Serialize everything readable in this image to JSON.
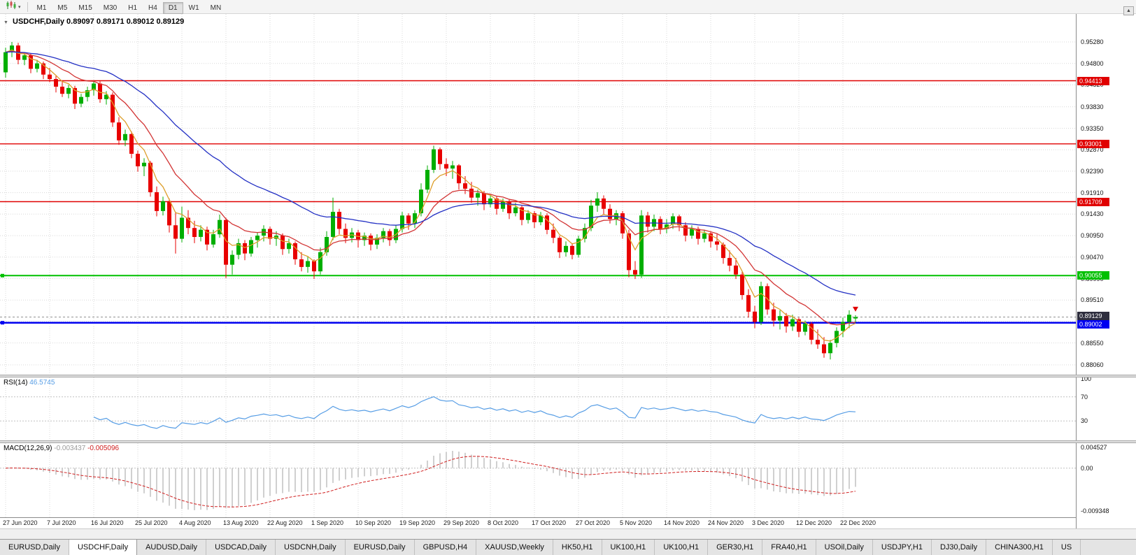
{
  "icons": {
    "collapse": "▼",
    "scroll_up": "▲",
    "chart_type": "candlestick-chart-icon",
    "dropdown": "▾"
  },
  "toolbar": {
    "timeframes": [
      "M1",
      "M5",
      "M15",
      "M30",
      "H1",
      "H4",
      "D1",
      "W1",
      "MN"
    ],
    "active_timeframe": "D1"
  },
  "chart": {
    "title": "USDCHF,Daily",
    "open": "0.89097",
    "high": "0.89171",
    "low": "0.89012",
    "close": "0.89129"
  },
  "indicators": {
    "rsi": {
      "label": "RSI(14)",
      "value": "46.5745",
      "color": "#569de5",
      "levels": [
        "100",
        "70",
        "30"
      ],
      "level_values": [
        100,
        70,
        30
      ]
    },
    "macd": {
      "label": "MACD(12,26,9)",
      "main_value": "-0.003437",
      "signal_value": "-0.005096",
      "hist_color": "#bcbcbc",
      "signal_color": "#d02020",
      "scale_labels": [
        "0.004527",
        "0.00",
        "-0.009348"
      ],
      "scale_max": 0.004527,
      "scale_min": -0.009348
    }
  },
  "chart_data": {
    "type": "candlestick",
    "symbol": "USDCHF",
    "timeframe": "Daily",
    "title": "USDCHF,Daily 0.89097 0.89171 0.89012 0.89129",
    "candle_format": "[open, high, low, close]",
    "up_color": "#00ae00",
    "down_color": "#e80000",
    "y_axis": {
      "price_max": 0.95905,
      "price_min": 0.87841,
      "ticks": [
        "0.95280",
        "0.94800",
        "0.94320",
        "0.93830",
        "0.93350",
        "0.92870",
        "0.92390",
        "0.91910",
        "0.91430",
        "0.90950",
        "0.90470",
        "0.89990",
        "0.89510",
        "0.89030",
        "0.88550",
        "0.88060"
      ]
    },
    "x_axis": {
      "label_every_n_candles": 7,
      "labels": [
        "27 Jun 2020",
        "7 Jul 2020",
        "16 Jul 2020",
        "25 Jul 2020",
        "4 Aug 2020",
        "13 Aug 2020",
        "22 Aug 2020",
        "1 Sep 2020",
        "10 Sep 2020",
        "19 Sep 2020",
        "29 Sep 2020",
        "8 Oct 2020",
        "17 Oct 2020",
        "27 Oct 2020",
        "5 Nov 2020",
        "14 Nov 2020",
        "24 Nov 2020",
        "3 Dec 2020",
        "12 Dec 2020",
        "22 Dec 2020"
      ]
    },
    "levels": [
      {
        "name": "resistance-1",
        "price": 0.94413,
        "label": "0.94413",
        "color": "#e00000",
        "width": 1.4,
        "handle": false,
        "tag_dy": -6
      },
      {
        "name": "resistance-2",
        "price": 0.93001,
        "label": "0.93001",
        "color": "#e00000",
        "width": 1.4,
        "handle": false,
        "tag_dy": -6
      },
      {
        "name": "resistance-3",
        "price": 0.91709,
        "label": "0.91709",
        "color": "#e00000",
        "width": 1.4,
        "handle": false,
        "tag_dy": -6
      },
      {
        "name": "support-green",
        "price": 0.90055,
        "label": "0.90055",
        "color": "#00c000",
        "width": 2,
        "handle": true,
        "tag_dy": -6
      },
      {
        "name": "support-blue",
        "price": 0.89002,
        "label": "0.89002",
        "color": "#0000f0",
        "width": 2.5,
        "handle": true,
        "tag_dy": -4
      }
    ],
    "current_price": {
      "value": 0.89129,
      "label": "0.89129",
      "tag_color": "#2e2e3e",
      "tag_dy": -8
    },
    "moving_averages": [
      {
        "name": "ma-fast-orange",
        "period": 5,
        "color": "#dd9f2c"
      },
      {
        "name": "ma-mid-red",
        "period": 13,
        "color": "#d23434"
      },
      {
        "name": "ma-slow-blue",
        "period": 34,
        "color": "#2330c4"
      }
    ],
    "arrow_marker": {
      "color": "#e00000",
      "candle_index": 135
    },
    "candles": [
      [
        0.946,
        0.9515,
        0.9448,
        0.9505
      ],
      [
        0.9505,
        0.9528,
        0.9494,
        0.952
      ],
      [
        0.952,
        0.9526,
        0.9478,
        0.9488
      ],
      [
        0.9488,
        0.9505,
        0.9476,
        0.9498
      ],
      [
        0.9498,
        0.9503,
        0.9458,
        0.9468
      ],
      [
        0.9468,
        0.9488,
        0.946,
        0.948
      ],
      [
        0.948,
        0.9484,
        0.9445,
        0.9455
      ],
      [
        0.9455,
        0.947,
        0.9438,
        0.9445
      ],
      [
        0.9445,
        0.9452,
        0.9415,
        0.9428
      ],
      [
        0.9428,
        0.9442,
        0.9405,
        0.9412
      ],
      [
        0.9412,
        0.9432,
        0.9402,
        0.9425
      ],
      [
        0.9425,
        0.943,
        0.9378,
        0.939
      ],
      [
        0.939,
        0.9412,
        0.9382,
        0.9405
      ],
      [
        0.9405,
        0.9428,
        0.9395,
        0.942
      ],
      [
        0.942,
        0.9441,
        0.9408,
        0.9435
      ],
      [
        0.9435,
        0.944,
        0.9392,
        0.94
      ],
      [
        0.94,
        0.9418,
        0.9388,
        0.941
      ],
      [
        0.941,
        0.9415,
        0.9338,
        0.9348
      ],
      [
        0.9348,
        0.936,
        0.9298,
        0.9308
      ],
      [
        0.9308,
        0.9332,
        0.9295,
        0.9322
      ],
      [
        0.9322,
        0.9328,
        0.9268,
        0.9278
      ],
      [
        0.9278,
        0.9285,
        0.9238,
        0.925
      ],
      [
        0.925,
        0.9268,
        0.9228,
        0.9258
      ],
      [
        0.9258,
        0.9262,
        0.9182,
        0.9192
      ],
      [
        0.9192,
        0.9205,
        0.9138,
        0.915
      ],
      [
        0.915,
        0.9182,
        0.914,
        0.9172
      ],
      [
        0.9172,
        0.9178,
        0.9102,
        0.9118
      ],
      [
        0.9118,
        0.9148,
        0.9055,
        0.9088
      ],
      [
        0.9088,
        0.916,
        0.908,
        0.9135
      ],
      [
        0.9135,
        0.9152,
        0.9098,
        0.9112
      ],
      [
        0.9112,
        0.9128,
        0.9078,
        0.9092
      ],
      [
        0.9092,
        0.9118,
        0.9082,
        0.9108
      ],
      [
        0.9108,
        0.9115,
        0.9062,
        0.9075
      ],
      [
        0.9075,
        0.9108,
        0.9068,
        0.9098
      ],
      [
        0.9098,
        0.9142,
        0.909,
        0.913
      ],
      [
        0.913,
        0.9135,
        0.9,
        0.903
      ],
      [
        0.903,
        0.9062,
        0.9008,
        0.9052
      ],
      [
        0.9052,
        0.9088,
        0.9042,
        0.9078
      ],
      [
        0.9078,
        0.9085,
        0.904,
        0.9055
      ],
      [
        0.9055,
        0.9092,
        0.9048,
        0.9085
      ],
      [
        0.9085,
        0.9102,
        0.9068,
        0.9095
      ],
      [
        0.9095,
        0.9118,
        0.9082,
        0.911
      ],
      [
        0.911,
        0.9115,
        0.9075,
        0.9088
      ],
      [
        0.9088,
        0.9105,
        0.9072,
        0.9095
      ],
      [
        0.9095,
        0.91,
        0.9052,
        0.9065
      ],
      [
        0.9065,
        0.9088,
        0.9055,
        0.9078
      ],
      [
        0.9078,
        0.9082,
        0.903,
        0.9042
      ],
      [
        0.9042,
        0.9058,
        0.9015,
        0.9025
      ],
      [
        0.9025,
        0.9048,
        0.9012,
        0.9038
      ],
      [
        0.9038,
        0.9042,
        0.8998,
        0.9015
      ],
      [
        0.9015,
        0.9068,
        0.9008,
        0.9058
      ],
      [
        0.9058,
        0.9105,
        0.905,
        0.9092
      ],
      [
        0.9092,
        0.918,
        0.9085,
        0.9148
      ],
      [
        0.9148,
        0.9155,
        0.9098,
        0.911
      ],
      [
        0.911,
        0.9122,
        0.9078,
        0.909
      ],
      [
        0.909,
        0.9112,
        0.908,
        0.9102
      ],
      [
        0.9102,
        0.9108,
        0.9068,
        0.9085
      ],
      [
        0.9085,
        0.9102,
        0.9072,
        0.9095
      ],
      [
        0.9095,
        0.91,
        0.9062,
        0.9075
      ],
      [
        0.9075,
        0.9098,
        0.9065,
        0.909
      ],
      [
        0.909,
        0.9112,
        0.908,
        0.9105
      ],
      [
        0.9105,
        0.911,
        0.9072,
        0.9085
      ],
      [
        0.9085,
        0.9118,
        0.9078,
        0.911
      ],
      [
        0.911,
        0.9148,
        0.9102,
        0.914
      ],
      [
        0.914,
        0.9145,
        0.9108,
        0.9122
      ],
      [
        0.9122,
        0.9152,
        0.9112,
        0.9145
      ],
      [
        0.9145,
        0.9212,
        0.9138,
        0.9198
      ],
      [
        0.9198,
        0.9252,
        0.919,
        0.9242
      ],
      [
        0.9242,
        0.9296,
        0.9235,
        0.9288
      ],
      [
        0.9288,
        0.9292,
        0.9242,
        0.9255
      ],
      [
        0.9255,
        0.9268,
        0.9228,
        0.9245
      ],
      [
        0.9245,
        0.9262,
        0.9222,
        0.9252
      ],
      [
        0.9252,
        0.9255,
        0.9198,
        0.9212
      ],
      [
        0.9212,
        0.9228,
        0.9188,
        0.92
      ],
      [
        0.92,
        0.9215,
        0.9168,
        0.918
      ],
      [
        0.918,
        0.9198,
        0.9162,
        0.919
      ],
      [
        0.919,
        0.9195,
        0.9152,
        0.9165
      ],
      [
        0.9165,
        0.9188,
        0.9158,
        0.9178
      ],
      [
        0.9178,
        0.9182,
        0.9142,
        0.9155
      ],
      [
        0.9155,
        0.9178,
        0.9148,
        0.917
      ],
      [
        0.917,
        0.9175,
        0.9132,
        0.9145
      ],
      [
        0.9145,
        0.9168,
        0.9138,
        0.9158
      ],
      [
        0.9158,
        0.9162,
        0.9118,
        0.913
      ],
      [
        0.913,
        0.9152,
        0.9122,
        0.9145
      ],
      [
        0.9145,
        0.915,
        0.9112,
        0.9125
      ],
      [
        0.9125,
        0.9148,
        0.9118,
        0.914
      ],
      [
        0.914,
        0.9145,
        0.9098,
        0.9108
      ],
      [
        0.9108,
        0.9122,
        0.9078,
        0.909
      ],
      [
        0.909,
        0.9095,
        0.9045,
        0.9058
      ],
      [
        0.9058,
        0.9082,
        0.9048,
        0.9072
      ],
      [
        0.9072,
        0.9078,
        0.9042,
        0.9052
      ],
      [
        0.9052,
        0.9095,
        0.9046,
        0.9088
      ],
      [
        0.9088,
        0.9122,
        0.908,
        0.9112
      ],
      [
        0.9112,
        0.9175,
        0.9105,
        0.9162
      ],
      [
        0.9162,
        0.9192,
        0.9148,
        0.9178
      ],
      [
        0.9178,
        0.9185,
        0.9142,
        0.9155
      ],
      [
        0.9155,
        0.9165,
        0.9122,
        0.9132
      ],
      [
        0.9132,
        0.9152,
        0.9118,
        0.9145
      ],
      [
        0.9145,
        0.915,
        0.9088,
        0.91
      ],
      [
        0.91,
        0.9108,
        0.9002,
        0.9018
      ],
      [
        0.9018,
        0.9038,
        0.8998,
        0.9008
      ],
      [
        0.9008,
        0.9152,
        0.9,
        0.914
      ],
      [
        0.914,
        0.9148,
        0.9102,
        0.9115
      ],
      [
        0.9115,
        0.9142,
        0.9105,
        0.9132
      ],
      [
        0.9132,
        0.9138,
        0.9098,
        0.911
      ],
      [
        0.911,
        0.9132,
        0.91,
        0.912
      ],
      [
        0.912,
        0.9145,
        0.911,
        0.9138
      ],
      [
        0.9138,
        0.9142,
        0.9105,
        0.9118
      ],
      [
        0.9118,
        0.9125,
        0.9082,
        0.9095
      ],
      [
        0.9095,
        0.9118,
        0.9088,
        0.911
      ],
      [
        0.911,
        0.9115,
        0.9075,
        0.9088
      ],
      [
        0.9088,
        0.9108,
        0.908,
        0.91
      ],
      [
        0.91,
        0.9105,
        0.9068,
        0.9082
      ],
      [
        0.9082,
        0.9098,
        0.9062,
        0.9075
      ],
      [
        0.9075,
        0.908,
        0.9032,
        0.9045
      ],
      [
        0.9045,
        0.9062,
        0.9015,
        0.9028
      ],
      [
        0.9028,
        0.9045,
        0.8998,
        0.9008
      ],
      [
        0.9008,
        0.9015,
        0.8952,
        0.8962
      ],
      [
        0.8962,
        0.8975,
        0.8912,
        0.8925
      ],
      [
        0.8925,
        0.8938,
        0.8888,
        0.8902
      ],
      [
        0.8902,
        0.8992,
        0.8895,
        0.8982
      ],
      [
        0.8982,
        0.8988,
        0.8918,
        0.893
      ],
      [
        0.893,
        0.8945,
        0.8892,
        0.8905
      ],
      [
        0.8905,
        0.8928,
        0.8885,
        0.8915
      ],
      [
        0.8915,
        0.8922,
        0.8878,
        0.8892
      ],
      [
        0.8892,
        0.8918,
        0.8882,
        0.8908
      ],
      [
        0.8908,
        0.8912,
        0.8868,
        0.888
      ],
      [
        0.888,
        0.8905,
        0.8872,
        0.8898
      ],
      [
        0.8898,
        0.8902,
        0.8852,
        0.8862
      ],
      [
        0.8862,
        0.8885,
        0.8842,
        0.8852
      ],
      [
        0.8852,
        0.8868,
        0.8822,
        0.8832
      ],
      [
        0.8832,
        0.8862,
        0.8818,
        0.8855
      ],
      [
        0.8855,
        0.889,
        0.8845,
        0.8882
      ],
      [
        0.8882,
        0.8912,
        0.8868,
        0.8902
      ],
      [
        0.8902,
        0.8928,
        0.8888,
        0.8918
      ],
      [
        0.89097,
        0.89171,
        0.89012,
        0.89129
      ]
    ]
  },
  "tabs": {
    "active_index": 1,
    "items": [
      {
        "label": "EURUSD,Daily"
      },
      {
        "label": "USDCHF,Daily"
      },
      {
        "label": "AUDUSD,Daily"
      },
      {
        "label": "USDCAD,Daily"
      },
      {
        "label": "USDCNH,Daily"
      },
      {
        "label": "EURUSD,Daily"
      },
      {
        "label": "GBPUSD,H4"
      },
      {
        "label": "XAUUSD,Weekly"
      },
      {
        "label": "HK50,H1"
      },
      {
        "label": "UK100,H1"
      },
      {
        "label": "UK100,H1"
      },
      {
        "label": "GER30,H1"
      },
      {
        "label": "FRA40,H1"
      },
      {
        "label": "USOil,Daily"
      },
      {
        "label": "USDJPY,H1"
      },
      {
        "label": "DJ30,Daily"
      },
      {
        "label": "CHINA300,H1"
      },
      {
        "label": "US"
      }
    ]
  }
}
